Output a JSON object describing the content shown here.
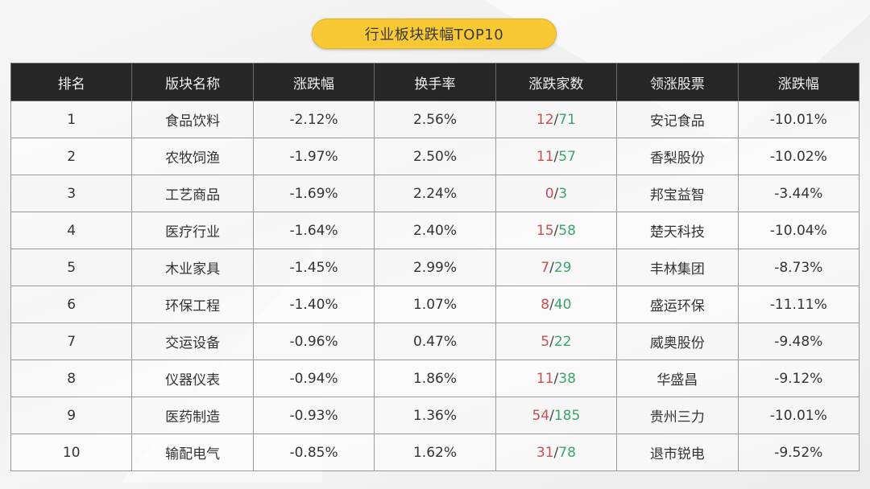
{
  "title": "行业板块跌幅TOP10",
  "colors": {
    "title_bg": "#f8c935",
    "header_bg": "#262626",
    "down": "#3aa66b",
    "up": "#c4514f"
  },
  "table": {
    "headers": [
      "排名",
      "版块名称",
      "涨跌幅",
      "换手率",
      "涨跌家数",
      "领涨股票",
      "涨跌幅"
    ],
    "rows": [
      {
        "rank": "1",
        "sector": "食品饮料",
        "change": "-2.12%",
        "turnover": "2.56%",
        "up": "12",
        "down": "71",
        "leader": "安记食品",
        "leader_change": "-10.01%"
      },
      {
        "rank": "2",
        "sector": "农牧饲渔",
        "change": "-1.97%",
        "turnover": "2.50%",
        "up": "11",
        "down": "57",
        "leader": "香梨股份",
        "leader_change": "-10.02%"
      },
      {
        "rank": "3",
        "sector": "工艺商品",
        "change": "-1.69%",
        "turnover": "2.24%",
        "up": "0",
        "down": "3",
        "leader": "邦宝益智",
        "leader_change": "-3.44%"
      },
      {
        "rank": "4",
        "sector": "医疗行业",
        "change": "-1.64%",
        "turnover": "2.40%",
        "up": "15",
        "down": "58",
        "leader": "楚天科技",
        "leader_change": "-10.04%"
      },
      {
        "rank": "5",
        "sector": "木业家具",
        "change": "-1.45%",
        "turnover": "2.99%",
        "up": "7",
        "down": "29",
        "leader": "丰林集团",
        "leader_change": "-8.73%"
      },
      {
        "rank": "6",
        "sector": "环保工程",
        "change": "-1.40%",
        "turnover": "1.07%",
        "up": "8",
        "down": "40",
        "leader": "盛运环保",
        "leader_change": "-11.11%"
      },
      {
        "rank": "7",
        "sector": "交运设备",
        "change": "-0.96%",
        "turnover": "0.47%",
        "up": "5",
        "down": "22",
        "leader": "威奥股份",
        "leader_change": "-9.48%"
      },
      {
        "rank": "8",
        "sector": "仪器仪表",
        "change": "-0.94%",
        "turnover": "1.86%",
        "up": "11",
        "down": "38",
        "leader": "华盛昌",
        "leader_change": "-9.12%"
      },
      {
        "rank": "9",
        "sector": "医药制造",
        "change": "-0.93%",
        "turnover": "1.36%",
        "up": "54",
        "down": "185",
        "leader": "贵州三力",
        "leader_change": "-10.01%"
      },
      {
        "rank": "10",
        "sector": "输配电气",
        "change": "-0.85%",
        "turnover": "1.62%",
        "up": "31",
        "down": "78",
        "leader": "退市锐电",
        "leader_change": "-9.52%"
      }
    ]
  },
  "sep": "/"
}
